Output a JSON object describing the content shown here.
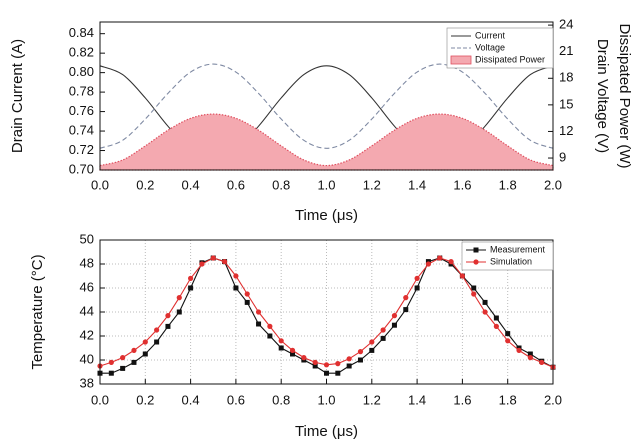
{
  "chart_data": [
    {
      "type": "line",
      "x_label": "Time (μs)",
      "y_label": "Drain Current (A)",
      "y2labels": [
        "Drain Voltage (V)",
        "Dissipated Power (W)"
      ],
      "x": [
        0,
        0.1,
        0.2,
        0.3,
        0.4,
        0.5,
        0.6,
        0.7,
        0.8,
        0.9,
        1,
        1.1,
        1.2,
        1.3,
        1.4,
        1.5,
        1.6,
        1.7,
        1.8,
        1.9,
        2
      ],
      "xlim": [
        0,
        2
      ],
      "xticks": [
        {
          "value": 0,
          "label": "0.0"
        },
        0.2,
        0.4,
        0.6,
        0.8,
        {
          "value": 1,
          "label": "1.0"
        },
        1.2,
        1.4,
        1.6,
        1.8,
        {
          "value": 2,
          "label": "2.0"
        }
      ],
      "ylim": [
        0.7,
        0.852
      ],
      "yticks": [
        {
          "value": 0.7,
          "label": "0.70"
        },
        0.72,
        0.74,
        0.76,
        0.78,
        {
          "value": 0.8,
          "label": "0.80"
        },
        0.82,
        0.84
      ],
      "y2lim": [
        7.65,
        24.35
      ],
      "y2ticks": [
        9,
        12,
        15,
        18,
        21,
        24
      ],
      "grid": false,
      "smooth": true,
      "legend": "upper right",
      "series": [
        {
          "name": "Current",
          "color": "#333333",
          "style": "solid",
          "values": [
            0.807,
            0.798,
            0.774,
            0.745,
            0.721,
            0.712,
            0.721,
            0.745,
            0.774,
            0.798,
            0.807,
            0.798,
            0.774,
            0.745,
            0.721,
            0.712,
            0.721,
            0.745,
            0.774,
            0.798,
            0.807
          ]
        },
        {
          "name": "Voltage",
          "color": "#7f8aa3",
          "style": "dashed",
          "axis": "y2",
          "values": [
            10.1,
            11.0,
            13.4,
            16.3,
            18.7,
            19.6,
            18.7,
            16.3,
            13.4,
            11.0,
            10.1,
            11.0,
            13.4,
            16.3,
            18.7,
            19.6,
            18.7,
            16.3,
            13.4,
            11.0,
            10.1
          ]
        },
        {
          "name": "Dissipated Power",
          "color": "#f4a9b0",
          "style": "area",
          "axis": "y2",
          "values": [
            8.15,
            8.78,
            10.37,
            12.14,
            13.48,
            13.96,
            13.48,
            12.14,
            10.37,
            8.78,
            8.15,
            8.78,
            10.37,
            12.14,
            13.48,
            13.96,
            13.48,
            12.14,
            10.37,
            8.78,
            8.15
          ]
        }
      ]
    },
    {
      "type": "line",
      "x_label": "Time (μs)",
      "y_label": "Temperature (°C)",
      "x": [
        0,
        0.05,
        0.1,
        0.15,
        0.2,
        0.25,
        0.3,
        0.35,
        0.4,
        0.45,
        0.5,
        0.55,
        0.6,
        0.65,
        0.7,
        0.75,
        0.8,
        0.85,
        0.9,
        0.95,
        1,
        1.05,
        1.1,
        1.15,
        1.2,
        1.25,
        1.3,
        1.35,
        1.4,
        1.45,
        1.5,
        1.55,
        1.6,
        1.65,
        1.7,
        1.75,
        1.8,
        1.85,
        1.9,
        1.95,
        2
      ],
      "xlim": [
        0,
        2
      ],
      "xticks": [
        {
          "value": 0,
          "label": "0.0"
        },
        0.2,
        0.4,
        0.6,
        0.8,
        {
          "value": 1,
          "label": "1.0"
        },
        1.2,
        1.4,
        1.6,
        1.8,
        {
          "value": 2,
          "label": "2.0"
        }
      ],
      "ylim": [
        38,
        50
      ],
      "yticks": [
        38,
        40,
        42,
        44,
        46,
        48,
        50
      ],
      "grid": true,
      "smooth": false,
      "legend": "upper right",
      "series": [
        {
          "name": "Measurement",
          "color": "#111111",
          "marker": "square",
          "values": [
            38.9,
            38.9,
            39.3,
            39.8,
            40.5,
            41.5,
            42.8,
            44.0,
            46.0,
            48.1,
            48.5,
            48.2,
            46.0,
            44.8,
            43.0,
            42.0,
            41.0,
            40.5,
            40.0,
            39.5,
            38.9,
            38.9,
            39.5,
            40.0,
            40.8,
            41.8,
            42.9,
            44.2,
            46.0,
            48.2,
            48.5,
            48.0,
            47.0,
            46.0,
            44.8,
            43.5,
            42.2,
            41.0,
            40.5,
            39.9,
            39.4
          ]
        },
        {
          "name": "Simulation",
          "color": "#e03030",
          "marker": "circle",
          "values": [
            39.5,
            39.8,
            40.2,
            40.8,
            41.5,
            42.5,
            43.7,
            45.2,
            46.8,
            48.0,
            48.5,
            48.2,
            47.0,
            45.5,
            44.0,
            42.8,
            41.6,
            40.8,
            40.2,
            39.8,
            39.6,
            39.7,
            40.1,
            40.7,
            41.5,
            42.5,
            43.7,
            45.2,
            46.8,
            48.0,
            48.5,
            48.2,
            47.0,
            45.5,
            44.0,
            42.8,
            41.6,
            40.8,
            40.2,
            39.8,
            39.4
          ]
        }
      ]
    }
  ]
}
